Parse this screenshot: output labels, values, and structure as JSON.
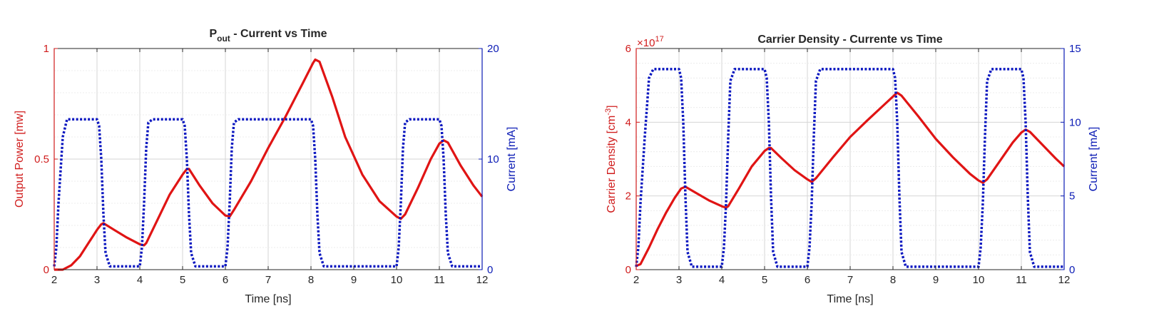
{
  "colors": {
    "left_axis": "#d01c1c",
    "right_axis": "#0b1bb5",
    "axis_dark": "#262626",
    "grid_major": "#d6d6d6",
    "grid_minor": "#ececec",
    "red_curve": "#e01414",
    "blue_curve": "#0b17c0"
  },
  "chart_data": [
    {
      "type": "line",
      "title": "P",
      "title_subscript": "out",
      "title_suffix": " - Current vs Time",
      "xlabel": "Time [ns]",
      "ylabel_left": "Output Power [mw]",
      "ylabel_right": "Current [mA]",
      "xlim": [
        2,
        12
      ],
      "ylim_left": [
        0,
        1
      ],
      "ylim_right": [
        0,
        20
      ],
      "x_ticks": [
        2,
        3,
        4,
        5,
        6,
        7,
        8,
        9,
        10,
        11,
        12
      ],
      "y_left_ticks": [
        {
          "v": 0,
          "t": "0"
        },
        {
          "v": 0.5,
          "t": "0.5"
        },
        {
          "v": 1,
          "t": "1"
        }
      ],
      "y_right_ticks": [
        {
          "v": 0,
          "t": "0"
        },
        {
          "v": 10,
          "t": "10"
        },
        {
          "v": 20,
          "t": "20"
        }
      ],
      "grid": "on",
      "series": [
        {
          "axis": "left",
          "style": "solid",
          "x": [
            2.0,
            2.2,
            2.4,
            2.6,
            2.8,
            3.0,
            3.1,
            3.15,
            3.4,
            3.7,
            4.0,
            4.1,
            4.15,
            4.4,
            4.7,
            5.0,
            5.1,
            5.15,
            5.4,
            5.7,
            6.0,
            6.1,
            6.2,
            6.6,
            7.0,
            7.4,
            7.8,
            8.05,
            8.1,
            8.2,
            8.5,
            8.8,
            9.2,
            9.6,
            10.0,
            10.1,
            10.2,
            10.5,
            10.8,
            11.0,
            11.1,
            11.2,
            11.5,
            11.8,
            12.0
          ],
          "y": [
            0.0,
            0.0,
            0.02,
            0.06,
            0.12,
            0.18,
            0.205,
            0.21,
            0.18,
            0.145,
            0.115,
            0.11,
            0.12,
            0.22,
            0.34,
            0.43,
            0.455,
            0.455,
            0.38,
            0.3,
            0.245,
            0.24,
            0.27,
            0.4,
            0.55,
            0.69,
            0.84,
            0.935,
            0.95,
            0.94,
            0.78,
            0.6,
            0.43,
            0.31,
            0.24,
            0.23,
            0.25,
            0.37,
            0.5,
            0.57,
            0.585,
            0.575,
            0.47,
            0.38,
            0.33
          ]
        },
        {
          "axis": "right",
          "style": "dotted",
          "x": [
            2.0,
            2.05,
            2.1,
            2.2,
            2.3,
            2.4,
            3.0,
            3.05,
            3.1,
            3.15,
            3.2,
            3.3,
            4.0,
            4.05,
            4.1,
            4.15,
            4.2,
            4.3,
            5.0,
            5.05,
            5.1,
            5.15,
            5.2,
            5.3,
            6.0,
            6.05,
            6.1,
            6.15,
            6.2,
            6.3,
            8.0,
            8.05,
            8.1,
            8.15,
            8.2,
            8.3,
            10.0,
            10.05,
            10.1,
            10.15,
            10.2,
            10.3,
            11.0,
            11.05,
            11.1,
            11.15,
            11.2,
            11.3,
            12.0
          ],
          "y": [
            0.3,
            2.0,
            6.0,
            12.0,
            13.6,
            13.6,
            13.6,
            13.0,
            10.0,
            5.0,
            1.5,
            0.3,
            0.3,
            2.0,
            6.0,
            11.0,
            13.3,
            13.6,
            13.6,
            13.0,
            10.0,
            5.0,
            1.5,
            0.3,
            0.3,
            2.0,
            6.0,
            11.0,
            13.3,
            13.6,
            13.6,
            13.0,
            10.0,
            5.0,
            1.5,
            0.3,
            0.3,
            2.0,
            6.0,
            11.0,
            13.3,
            13.6,
            13.6,
            13.0,
            10.0,
            5.0,
            1.5,
            0.3,
            0.3
          ]
        }
      ]
    },
    {
      "type": "line",
      "title": "Carrier Density - Currente vs Time",
      "xlabel": "Time [ns]",
      "ylabel_left": "Carrier Density [cm",
      "ylabel_left_sup": "-3",
      "ylabel_left_end": "]",
      "ylabel_right": "Current [mA]",
      "exponent_base": "×10",
      "exponent_power": "17",
      "xlim": [
        2,
        12
      ],
      "ylim_left": [
        0,
        6
      ],
      "ylim_right": [
        0,
        15
      ],
      "x_ticks": [
        2,
        3,
        4,
        5,
        6,
        7,
        8,
        9,
        10,
        11,
        12
      ],
      "y_left_ticks": [
        {
          "v": 0,
          "t": "0"
        },
        {
          "v": 2,
          "t": "2"
        },
        {
          "v": 4,
          "t": "4"
        },
        {
          "v": 6,
          "t": "6"
        }
      ],
      "y_right_ticks": [
        {
          "v": 0,
          "t": "0"
        },
        {
          "v": 5,
          "t": "5"
        },
        {
          "v": 10,
          "t": "10"
        },
        {
          "v": 15,
          "t": "15"
        }
      ],
      "grid": "on",
      "series": [
        {
          "axis": "left",
          "style": "solid",
          "x": [
            2.0,
            2.1,
            2.3,
            2.5,
            2.7,
            2.9,
            3.05,
            3.15,
            3.4,
            3.7,
            4.0,
            4.1,
            4.15,
            4.4,
            4.7,
            5.0,
            5.1,
            5.15,
            5.4,
            5.7,
            6.0,
            6.1,
            6.2,
            6.6,
            7.0,
            7.4,
            7.8,
            8.05,
            8.1,
            8.2,
            8.6,
            9.0,
            9.4,
            9.8,
            10.0,
            10.1,
            10.2,
            10.5,
            10.8,
            11.0,
            11.1,
            11.2,
            11.5,
            11.8,
            12.0
          ],
          "y": [
            0.1,
            0.15,
            0.6,
            1.1,
            1.55,
            1.95,
            2.2,
            2.25,
            2.08,
            1.88,
            1.72,
            1.68,
            1.72,
            2.2,
            2.8,
            3.22,
            3.3,
            3.3,
            3.02,
            2.7,
            2.45,
            2.38,
            2.48,
            3.05,
            3.6,
            4.05,
            4.48,
            4.75,
            4.8,
            4.72,
            4.15,
            3.55,
            3.05,
            2.6,
            2.42,
            2.36,
            2.45,
            2.95,
            3.45,
            3.72,
            3.8,
            3.74,
            3.38,
            3.02,
            2.8
          ]
        },
        {
          "axis": "right",
          "style": "dotted",
          "x": [
            2.0,
            2.05,
            2.1,
            2.2,
            2.3,
            2.4,
            3.0,
            3.05,
            3.1,
            3.15,
            3.2,
            3.3,
            4.0,
            4.05,
            4.1,
            4.15,
            4.2,
            4.3,
            5.0,
            5.05,
            5.1,
            5.15,
            5.2,
            5.3,
            6.0,
            6.05,
            6.1,
            6.15,
            6.2,
            6.3,
            8.0,
            8.05,
            8.1,
            8.15,
            8.2,
            8.3,
            10.0,
            10.05,
            10.1,
            10.15,
            10.2,
            10.3,
            11.0,
            11.05,
            11.1,
            11.15,
            11.2,
            11.3,
            12.0
          ],
          "y": [
            0.2,
            1.5,
            4.5,
            9.0,
            13.0,
            13.6,
            13.6,
            13.0,
            10.0,
            5.0,
            1.2,
            0.2,
            0.2,
            1.5,
            4.5,
            9.0,
            12.8,
            13.6,
            13.6,
            13.0,
            10.0,
            5.0,
            1.2,
            0.2,
            0.2,
            1.5,
            4.5,
            9.0,
            12.8,
            13.6,
            13.6,
            13.0,
            10.0,
            5.0,
            1.2,
            0.2,
            0.2,
            1.5,
            4.5,
            9.0,
            12.8,
            13.6,
            13.6,
            13.0,
            10.0,
            5.0,
            1.2,
            0.2,
            0.2
          ]
        }
      ]
    }
  ]
}
